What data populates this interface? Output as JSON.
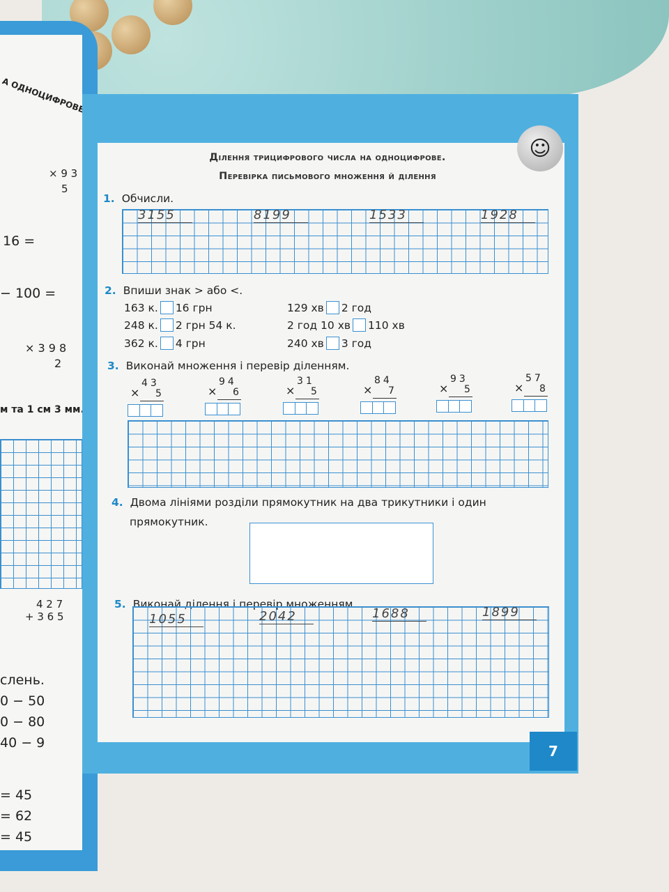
{
  "left_page": {
    "heading_fragment": "А ОДНОЦИФРОВЕ",
    "lines": [
      "16 =",
      "− 100 =",
      "× 3 9 8",
      "2",
      "м та 1 см 3 мм.",
      "4 2 7",
      "+ 3 6 5",
      "слень.",
      "0 − 50",
      "0 − 80",
      "40 − 9",
      "= 45",
      "= 62",
      "= 45"
    ],
    "mult_top": "× 9 3",
    "mult_bottom": "5"
  },
  "header": {
    "title_line1": "Ділення трицифрового числа на одноцифрове.",
    "title_line2": "Перевірка письмового множення й ділення"
  },
  "tasks": [
    {
      "number": "1.",
      "text": "Обчисли.",
      "handwritten": [
        "3155",
        "8199",
        "1533",
        "1928"
      ]
    },
    {
      "number": "2.",
      "text": "Впиши знак > або <.",
      "comparisons": [
        {
          "left": "163 к.",
          "right": "16 грн"
        },
        {
          "left": "248 к.",
          "right": "2 грн 54 к."
        },
        {
          "left": "362 к.",
          "right": "4 грн"
        },
        {
          "left": "129 хв",
          "right": "2 год"
        },
        {
          "left": "2 год 10 хв",
          "right": "110 хв"
        },
        {
          "left": "240 хв",
          "right": "3 год"
        }
      ]
    },
    {
      "number": "3.",
      "text": "Виконай множення і перевір діленням.",
      "multiplications": [
        {
          "a": "43",
          "b": "5"
        },
        {
          "a": "94",
          "b": "6"
        },
        {
          "a": "31",
          "b": "5"
        },
        {
          "a": "84",
          "b": "7"
        },
        {
          "a": "93",
          "b": "5"
        },
        {
          "a": "57",
          "b": "8"
        }
      ]
    },
    {
      "number": "4.",
      "text": "Двома лініями розділи прямокутник на два трикутники і один",
      "text2": "прямокутник."
    },
    {
      "number": "5.",
      "text": "Виконай ділення і перевір множенням.",
      "handwritten": [
        "1055",
        "2042",
        "1688",
        "1899"
      ]
    }
  ],
  "footer": {
    "page_number": "7"
  },
  "icons": {
    "mascot": "smiley-face-icon",
    "multiply": "×"
  },
  "colors": {
    "frame": "#4fb0e0",
    "grid": "#3a8fd0",
    "accent": "#1e88c8"
  }
}
